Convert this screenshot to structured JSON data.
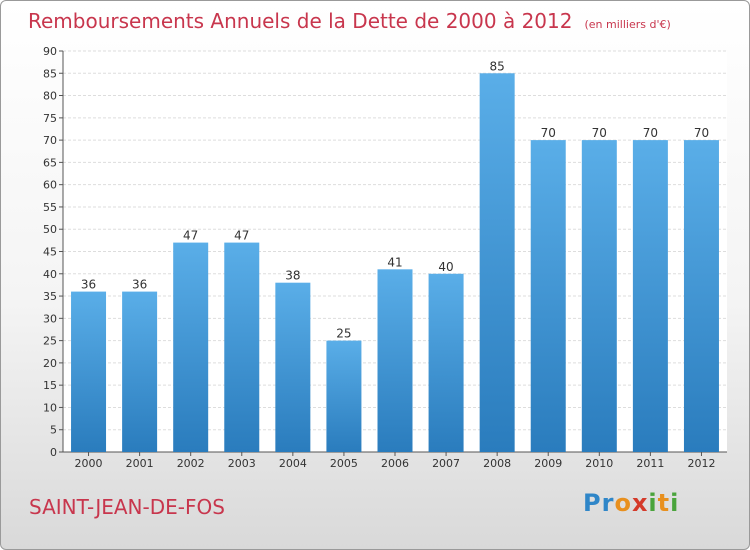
{
  "header": {
    "title": "Remboursements Annuels de la Dette de 2000 à 2012",
    "unit": "(en milliers d'€)"
  },
  "footer": {
    "city": "SAINT-JEAN-DE-FOS",
    "logo": "Proxiti"
  },
  "colors": {
    "title": "#c8364d",
    "bar_top": "#5aaee8",
    "bar_bottom": "#2a7cbd",
    "grid": "#dddddd"
  },
  "chart_data": {
    "type": "bar",
    "title": "Remboursements Annuels de la Dette de 2000 à 2012",
    "subtitle": "(en milliers d'€)",
    "categories": [
      "2000",
      "2001",
      "2002",
      "2003",
      "2004",
      "2005",
      "2006",
      "2007",
      "2008",
      "2009",
      "2010",
      "2011",
      "2012"
    ],
    "values": [
      36,
      36,
      47,
      47,
      38,
      25,
      41,
      40,
      85,
      70,
      70,
      70,
      70
    ],
    "ylim": [
      0,
      90
    ],
    "yticks": [
      0,
      5,
      10,
      15,
      20,
      25,
      30,
      35,
      40,
      45,
      50,
      55,
      60,
      65,
      70,
      75,
      80,
      85,
      90
    ],
    "grid": "horizontal",
    "data_labels": true
  }
}
